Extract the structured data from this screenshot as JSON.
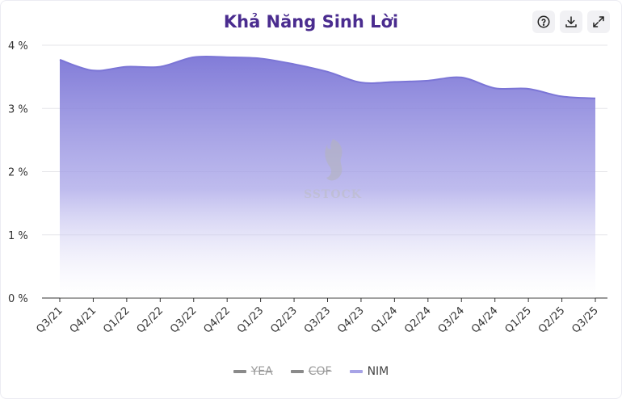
{
  "title": "Khả Năng Sinh Lời",
  "toolbar": {
    "help_icon": "help-circle-icon",
    "download_icon": "download-icon",
    "expand_icon": "expand-icon"
  },
  "watermark": {
    "text": "SSTOCK"
  },
  "legend": [
    {
      "label": "YEA",
      "color": "#8a8a8a",
      "hidden": true
    },
    {
      "label": "COF",
      "color": "#8a8a8a",
      "hidden": true
    },
    {
      "label": "NIM",
      "color": "#a7a3e6",
      "hidden": false
    }
  ],
  "chart_data": {
    "type": "area",
    "title": "Khả Năng Sinh Lời",
    "xlabel": "",
    "ylabel": "",
    "ylim": [
      0,
      4
    ],
    "y_ticks": [
      {
        "value": 0,
        "label": "0 %"
      },
      {
        "value": 1,
        "label": "1 %"
      },
      {
        "value": 2,
        "label": "2 %"
      },
      {
        "value": 3,
        "label": "3 %"
      },
      {
        "value": 4,
        "label": "4 %"
      }
    ],
    "grid": true,
    "legend_position": "bottom",
    "categories": [
      "Q3/21",
      "Q4/21",
      "Q1/22",
      "Q2/22",
      "Q3/22",
      "Q4/22",
      "Q1/23",
      "Q2/23",
      "Q3/23",
      "Q4/23",
      "Q1/24",
      "Q2/24",
      "Q3/24",
      "Q4/24",
      "Q1/25",
      "Q2/25",
      "Q3/25"
    ],
    "series": [
      {
        "name": "NIM",
        "color": "#7b75d6",
        "values": [
          3.77,
          3.6,
          3.66,
          3.66,
          3.81,
          3.81,
          3.79,
          3.7,
          3.58,
          3.41,
          3.42,
          3.44,
          3.49,
          3.32,
          3.31,
          3.19,
          3.16
        ]
      }
    ]
  }
}
